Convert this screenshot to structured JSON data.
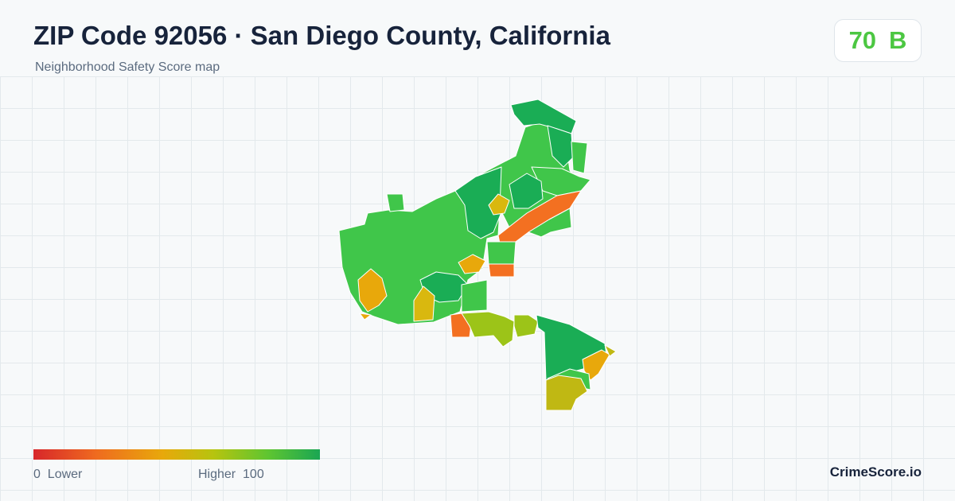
{
  "header": {
    "title": "ZIP Code 92056 · San Diego County, California",
    "subtitle": "Neighborhood Safety Score map"
  },
  "score": {
    "value": "70",
    "grade": "B",
    "color": "#4cc742"
  },
  "legend": {
    "low_value": "0",
    "low_label": "Lower",
    "high_label": "Higher",
    "high_value": "100",
    "colors": [
      "#d7262a",
      "#ef6b1f",
      "#e8a80b",
      "#b6c40f",
      "#5ec531",
      "#1aa653"
    ]
  },
  "map": {
    "colors": {
      "dark_green": "#1aad55",
      "green": "#40c64a",
      "orange": "#f37021",
      "dark_orange": "#ef6b1f",
      "amber": "#e8a80b",
      "yellow": "#d9b80f",
      "yellow_green": "#9cc418",
      "olive": "#c0b813",
      "border": "#ffffff"
    }
  },
  "brand": "CrimeScore.io"
}
